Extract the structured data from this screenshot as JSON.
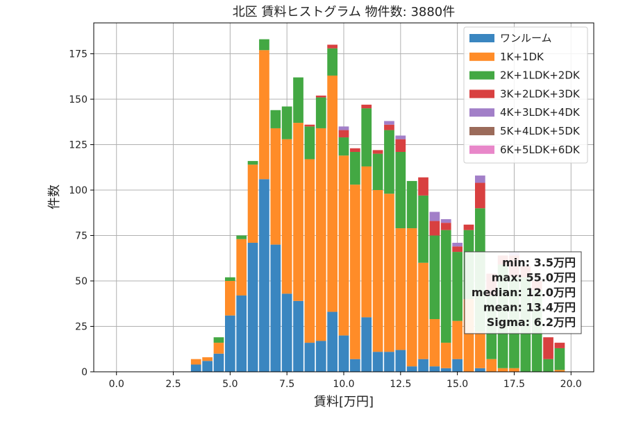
{
  "chart_data": {
    "type": "bar",
    "title": "北区 賃料ヒストグラム 物件数: 3880件",
    "xlabel": "賃料[万円]",
    "ylabel": "件数",
    "xlim": [
      -1.0,
      21.0
    ],
    "ylim": [
      0,
      192
    ],
    "xticks": [
      0.0,
      2.5,
      5.0,
      7.5,
      10.0,
      12.5,
      15.0,
      17.5,
      20.0
    ],
    "xtick_labels": [
      "0.0",
      "2.5",
      "5.0",
      "7.5",
      "10.0",
      "12.5",
      "15.0",
      "17.5",
      "20.0"
    ],
    "yticks": [
      0,
      25,
      50,
      75,
      100,
      125,
      150,
      175
    ],
    "ytick_labels": [
      "0",
      "25",
      "50",
      "75",
      "100",
      "125",
      "150",
      "175"
    ],
    "grid": true,
    "legend_position": "top-right",
    "stacked": true,
    "bin_width": 0.5,
    "x": [
      3.5,
      4.0,
      4.5,
      5.0,
      5.5,
      6.0,
      6.5,
      7.0,
      7.5,
      8.0,
      8.5,
      9.0,
      9.5,
      10.0,
      10.5,
      11.0,
      11.5,
      12.0,
      12.5,
      13.0,
      13.5,
      14.0,
      14.5,
      15.0,
      15.5,
      16.0,
      16.5,
      17.0,
      17.5,
      18.0,
      18.5,
      19.0,
      19.5
    ],
    "series": [
      {
        "name": "ワンルーム",
        "color": "#3a86c0",
        "values": [
          4,
          6,
          10,
          31,
          42,
          71,
          106,
          70,
          43,
          39,
          16,
          17,
          33,
          20,
          7,
          30,
          11,
          11,
          12,
          3,
          7,
          3,
          2,
          7,
          0,
          2,
          0,
          0,
          0,
          0,
          0,
          0,
          0
        ]
      },
      {
        "name": "1K+1DK",
        "color": "#ff8c28",
        "values": [
          3,
          2,
          6,
          19,
          31,
          43,
          71,
          64,
          85,
          98,
          101,
          117,
          130,
          99,
          96,
          83,
          89,
          87,
          67,
          76,
          53,
          26,
          14,
          21,
          40,
          20,
          7,
          2,
          2,
          0,
          0,
          0,
          1
        ]
      },
      {
        "name": "2K+1LDK+2DK",
        "color": "#43a843",
        "values": [
          0,
          0,
          3,
          2,
          2,
          2,
          6,
          10,
          18,
          25,
          18,
          17,
          15,
          10,
          18,
          32,
          20,
          35,
          42,
          26,
          37,
          46,
          62,
          38,
          38,
          68,
          35,
          57,
          50,
          52,
          45,
          7,
          12
        ]
      },
      {
        "name": "3K+2LDK+3DK",
        "color": "#d84040",
        "values": [
          0,
          0,
          0,
          0,
          0,
          0,
          0,
          0,
          0,
          0,
          1,
          1,
          2,
          4,
          2,
          2,
          2,
          3,
          7,
          0,
          10,
          8,
          4,
          3,
          3,
          14,
          12,
          5,
          12,
          6,
          5,
          12,
          3
        ]
      },
      {
        "name": "4K+3LDK+4DK",
        "color": "#a27fc8",
        "values": [
          0,
          0,
          0,
          0,
          0,
          0,
          0,
          0,
          0,
          0,
          0,
          0,
          0,
          2,
          0,
          0,
          0,
          2,
          2,
          0,
          0,
          5,
          2,
          2,
          0,
          4,
          0,
          0,
          2,
          0,
          0,
          0,
          0
        ]
      },
      {
        "name": "5K+4LDK+5DK",
        "color": "#9b6b5a",
        "values": [
          0,
          0,
          0,
          0,
          0,
          0,
          0,
          0,
          0,
          0,
          0,
          0,
          0,
          0,
          0,
          0,
          0,
          0,
          0,
          0,
          0,
          0,
          0,
          0,
          0,
          0,
          0,
          0,
          0,
          0,
          0,
          0,
          0
        ]
      },
      {
        "name": "6K+5LDK+6DK",
        "color": "#e887c9",
        "values": [
          0,
          0,
          0,
          0,
          0,
          0,
          0,
          0,
          0,
          0,
          0,
          0,
          0,
          0,
          0,
          0,
          0,
          0,
          0,
          0,
          0,
          0,
          0,
          0,
          0,
          0,
          0,
          0,
          0,
          0,
          0,
          0,
          0
        ]
      }
    ],
    "stats": [
      "min: 3.5万円",
      "max: 55.0万円",
      "median: 12.0万円",
      "mean: 13.4万円",
      "Sigma: 6.2万円"
    ]
  }
}
